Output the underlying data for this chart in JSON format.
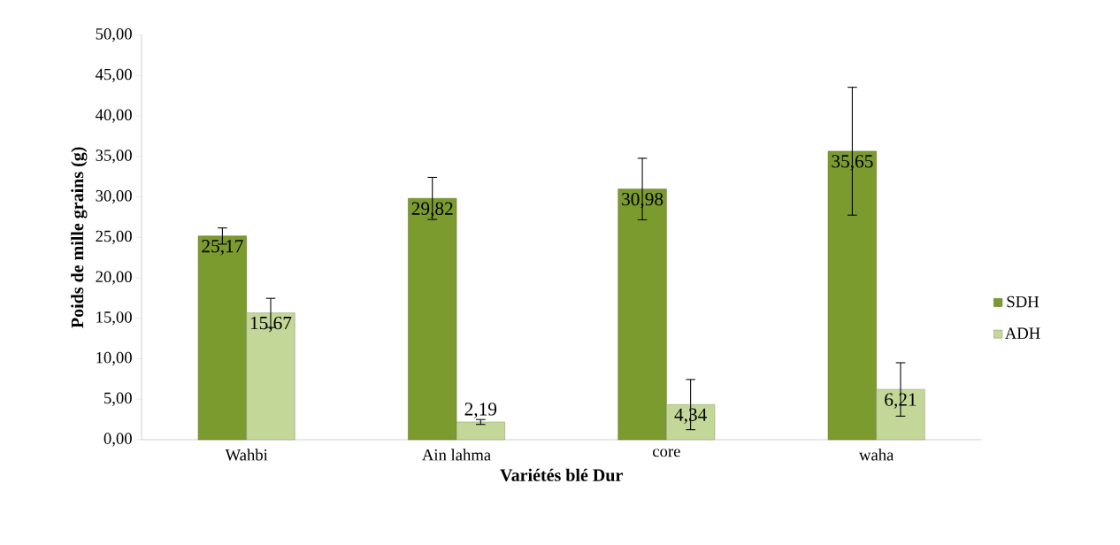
{
  "chart_data": {
    "type": "bar",
    "xlabel": "Variétés blé Dur",
    "ylabel": "Poids de mille grains (g)",
    "categories": [
      "Wahbi",
      "Ain lahma",
      "core",
      "waha"
    ],
    "series": [
      {
        "name": "SDH",
        "color": "#7b9b2f",
        "values": [
          25.17,
          29.82,
          30.98,
          35.65
        ],
        "errors": [
          1.0,
          2.6,
          3.8,
          7.9
        ],
        "value_labels": [
          "25,17",
          "29,82",
          "30,98",
          "35,65"
        ]
      },
      {
        "name": "ADH",
        "color": "#c3d799",
        "values": [
          15.67,
          2.19,
          4.34,
          6.21
        ],
        "errors": [
          1.8,
          0.3,
          3.1,
          3.3
        ],
        "value_labels": [
          "15,67",
          "2,19",
          "4,34",
          "6,21"
        ]
      }
    ],
    "ylim": [
      0,
      50
    ],
    "yticks": [
      {
        "value": 0,
        "label": "0,00"
      },
      {
        "value": 5,
        "label": "5,00"
      },
      {
        "value": 10,
        "label": "10,00"
      },
      {
        "value": 15,
        "label": "15,00"
      },
      {
        "value": 20,
        "label": "20,00"
      },
      {
        "value": 25,
        "label": "25,00"
      },
      {
        "value": 30,
        "label": "30,00"
      },
      {
        "value": 35,
        "label": "35,00"
      },
      {
        "value": 40,
        "label": "40,00"
      },
      {
        "value": 45,
        "label": "45,00"
      },
      {
        "value": 50,
        "label": "50,00"
      }
    ],
    "legend": "right"
  }
}
